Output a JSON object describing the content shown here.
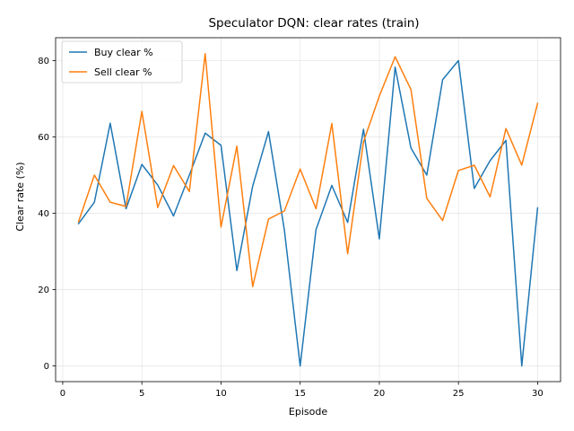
{
  "chart_data": {
    "type": "line",
    "title": "Speculator DQN: clear rates (train)",
    "xlabel": "Episode",
    "ylabel": "Clear rate (%)",
    "xlim": [
      -0.45,
      31.45
    ],
    "ylim": [
      -4.1,
      86.0
    ],
    "xticks": [
      0,
      5,
      10,
      15,
      20,
      25,
      30
    ],
    "yticks": [
      0,
      20,
      40,
      60,
      80
    ],
    "grid": true,
    "legend_position": "top-left",
    "x": [
      1,
      2,
      3,
      4,
      5,
      6,
      7,
      8,
      9,
      10,
      11,
      12,
      13,
      14,
      15,
      16,
      17,
      18,
      19,
      20,
      21,
      22,
      23,
      24,
      25,
      26,
      27,
      28,
      29,
      30
    ],
    "series": [
      {
        "name": "Buy clear %",
        "color": "#1f77b4",
        "values": [
          37.3,
          42.9,
          63.6,
          41.2,
          52.8,
          47.4,
          39.3,
          50.0,
          61.0,
          57.8,
          25.0,
          47.1,
          61.4,
          35.7,
          0.0,
          35.7,
          47.3,
          37.6,
          62.0,
          33.3,
          78.3,
          57.1,
          50.0,
          75.0,
          80.0,
          46.5,
          53.8,
          59.1,
          0.0,
          41.4
        ]
      },
      {
        "name": "Sell clear %",
        "color": "#ff7f0e",
        "values": [
          37.8,
          50.0,
          42.9,
          41.8,
          66.7,
          41.5,
          52.5,
          45.7,
          81.8,
          36.4,
          57.6,
          20.8,
          38.5,
          40.6,
          51.6,
          41.2,
          63.5,
          29.4,
          58.7,
          70.7,
          81.0,
          72.4,
          43.9,
          38.1,
          51.2,
          52.6,
          44.3,
          62.2,
          52.6,
          68.8
        ]
      }
    ]
  }
}
